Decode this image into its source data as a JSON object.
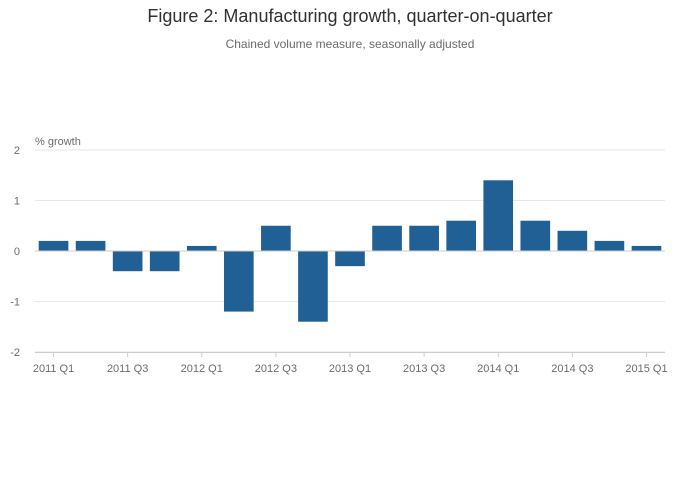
{
  "chart_data": {
    "type": "bar",
    "title": "Figure 2: Manufacturing growth, quarter-on-quarter",
    "subtitle": "Chained volume measure, seasonally adjusted",
    "xlabel": "",
    "ylabel": "% growth",
    "categories": [
      "2011 Q1",
      "2011 Q2",
      "2011 Q3",
      "2011 Q4",
      "2012 Q1",
      "2012 Q2",
      "2012 Q3",
      "2012 Q4",
      "2013 Q1",
      "2013 Q2",
      "2013 Q3",
      "2013 Q4",
      "2014 Q1",
      "2014 Q2",
      "2014 Q3",
      "2014 Q4",
      "2015 Q1"
    ],
    "values": [
      0.2,
      0.2,
      -0.4,
      -0.4,
      0.1,
      -1.2,
      0.5,
      -1.4,
      -0.3,
      0.5,
      0.5,
      0.6,
      1.4,
      0.6,
      0.4,
      0.2,
      0.1
    ],
    "x_tick_labels": [
      "2011 Q1",
      "2011 Q3",
      "2012 Q1",
      "2012 Q3",
      "2013 Q1",
      "2013 Q3",
      "2014 Q1",
      "2014 Q3",
      "2015 Q1"
    ],
    "y_ticks": [
      2,
      1,
      0,
      -1,
      -2
    ],
    "ylim": [
      -2,
      2
    ],
    "grid": true,
    "legend": "none",
    "colors": {
      "bar": "#206095",
      "grid": "#e6e6e6",
      "zero_line": "#cccccc",
      "axis": "#cccccc"
    }
  }
}
